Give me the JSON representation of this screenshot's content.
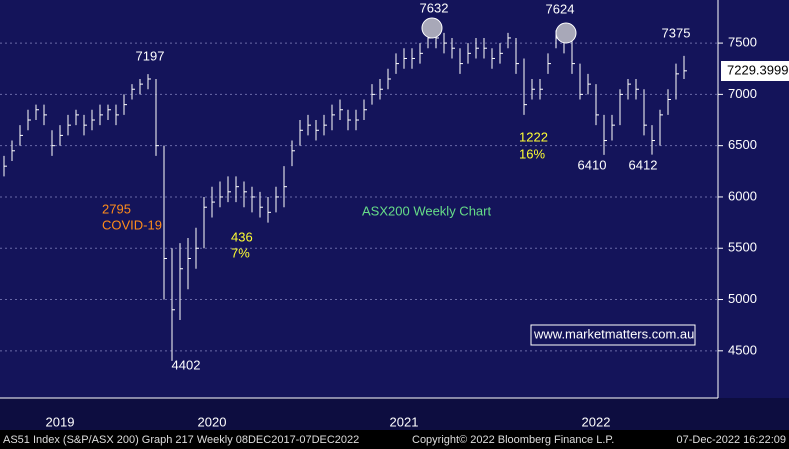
{
  "chart_data": {
    "type": "ohlc",
    "color": "#ffffff",
    "grid": true,
    "ylim": [
      4040,
      7920
    ],
    "yticks": [
      4500,
      5000,
      5500,
      6000,
      6500,
      7000,
      7500
    ],
    "categories": [
      null,
      null,
      null,
      null,
      null,
      null,
      null,
      "2019",
      null,
      null,
      null,
      null,
      null,
      null,
      null,
      null,
      null,
      null,
      null,
      null,
      null,
      null,
      null,
      null,
      null,
      null,
      "2020",
      null,
      null,
      null,
      null,
      null,
      null,
      null,
      null,
      null,
      null,
      null,
      null,
      null,
      null,
      null,
      null,
      null,
      null,
      null,
      null,
      null,
      null,
      null,
      "2021",
      null,
      null,
      null,
      null,
      null,
      null,
      null,
      null,
      null,
      null,
      null,
      null,
      null,
      null,
      null,
      null,
      null,
      null,
      null,
      null,
      null,
      null,
      null,
      "2022",
      null,
      null,
      null,
      null,
      null,
      null,
      null,
      null,
      null,
      null,
      null
    ],
    "values": [
      6300,
      6450,
      6600,
      6750,
      6850,
      6800,
      6500,
      6600,
      6700,
      6800,
      6700,
      6750,
      6800,
      6850,
      6800,
      6900,
      7050,
      7100,
      7150,
      6500,
      5400,
      4900,
      5300,
      5400,
      5500,
      5900,
      5950,
      6000,
      6050,
      6100,
      6050,
      6000,
      5900,
      5850,
      6000,
      6100,
      6450,
      6650,
      6700,
      6650,
      6700,
      6800,
      6850,
      6750,
      6750,
      6850,
      7000,
      7050,
      7150,
      7300,
      7350,
      7350,
      7400,
      7550,
      7550,
      7500,
      7450,
      7300,
      7400,
      7450,
      7450,
      7350,
      7400,
      7550,
      7300,
      6900,
      7050,
      7050,
      7300,
      7550,
      7550,
      7300,
      7000,
      7100,
      6800,
      6550,
      6700,
      7000,
      7100,
      7050,
      6700,
      6550,
      6800,
      6950,
      7200,
      7229.3999
    ],
    "high": [
      6400,
      6550,
      6700,
      6850,
      6900,
      6900,
      6650,
      6700,
      6800,
      6850,
      6800,
      6850,
      6900,
      6900,
      6900,
      7000,
      7100,
      7150,
      7197,
      7150,
      6500,
      5500,
      5550,
      5600,
      5700,
      6000,
      6100,
      6150,
      6200,
      6200,
      6150,
      6100,
      6050,
      6000,
      6100,
      6300,
      6550,
      6750,
      6800,
      6750,
      6800,
      6900,
      6950,
      6850,
      6850,
      6950,
      7100,
      7150,
      7250,
      7400,
      7450,
      7450,
      7500,
      7632,
      7600,
      7600,
      7550,
      7450,
      7500,
      7550,
      7550,
      7450,
      7500,
      7600,
      7550,
      7350,
      7150,
      7150,
      7400,
      7624,
      7600,
      7550,
      7300,
      7200,
      7100,
      6800,
      6800,
      7050,
      7150,
      7150,
      7050,
      6700,
      6850,
      7050,
      7300,
      7375
    ],
    "low": [
      6200,
      6350,
      6500,
      6650,
      6750,
      6700,
      6400,
      6500,
      6600,
      6700,
      6600,
      6650,
      6700,
      6750,
      6700,
      6800,
      6950,
      7000,
      7050,
      6400,
      5000,
      4402,
      4800,
      5100,
      5300,
      5500,
      5800,
      5900,
      5950,
      5950,
      5900,
      5850,
      5800,
      5750,
      5850,
      5900,
      6300,
      6500,
      6600,
      6550,
      6600,
      6650,
      6750,
      6650,
      6650,
      6750,
      6900,
      6950,
      7050,
      7200,
      7250,
      7250,
      7300,
      7450,
      7450,
      7400,
      7350,
      7200,
      7300,
      7350,
      7350,
      7250,
      7300,
      7450,
      7200,
      6800,
      6950,
      6950,
      7200,
      7450,
      7400,
      7200,
      6950,
      7000,
      6700,
      6410,
      6550,
      6700,
      6950,
      6950,
      6600,
      6412,
      6500,
      6800,
      6950,
      7150
    ],
    "annotations": [
      {
        "text": "2795",
        "color": "#ff8c1a"
      },
      {
        "text": "COVID-19",
        "color": "#ff8c1a"
      },
      {
        "text": "436",
        "color": "#ffff33"
      },
      {
        "text": "7%",
        "color": "#ffff33"
      },
      {
        "text": "1222",
        "color": "#ffff33"
      },
      {
        "text": "16%",
        "color": "#ffff33"
      },
      {
        "text": "ASX200 Weekly Chart",
        "color": "#66dd88"
      },
      {
        "text": "www.marketmatters.com.au",
        "color": "#ffffff"
      }
    ],
    "footer": {
      "left": "AS51 Index (S&P/ASX 200) Graph 217  Weekly 08DEC2017-07DEC2022",
      "center": "Copyright© 2022 Bloomberg Finance L.P.",
      "right": "07-Dec-2022 16:22:09"
    }
  }
}
